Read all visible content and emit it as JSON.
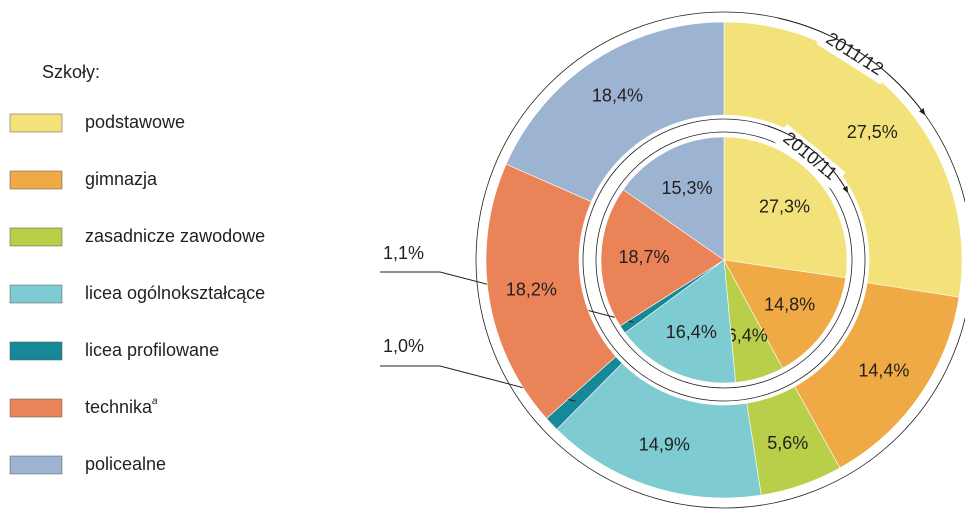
{
  "chart_data": {
    "type": "donut",
    "title": "Szkoły:",
    "categories": [
      "podstawowe",
      "gimnazja",
      "zasadnicze zawodowe",
      "licea ogólnokształcące",
      "licea profilowane",
      "technika",
      "policealne"
    ],
    "category_superscripts": [
      null,
      null,
      null,
      null,
      null,
      "a",
      null
    ],
    "colors": [
      "#f3e27a",
      "#f0aa45",
      "#b9cf4a",
      "#7ecbd2",
      "#168897",
      "#ea8458",
      "#9cb3d1"
    ],
    "series": [
      {
        "name": "2010/11",
        "values": [
          27.3,
          14.8,
          6.4,
          16.4,
          1.1,
          18.7,
          15.3
        ],
        "value_labels": [
          "27,3%",
          "14,8%",
          "6,4%",
          "16,4%",
          "1,1%",
          "18,7%",
          "15,3%"
        ]
      },
      {
        "name": "2011/12",
        "values": [
          27.5,
          14.4,
          5.6,
          14.9,
          1.0,
          18.2,
          18.4
        ],
        "value_labels": [
          "27,5%",
          "14,4%",
          "5,6%",
          "14,9%",
          "1,0%",
          "18,2%",
          "18,4%"
        ]
      }
    ]
  }
}
